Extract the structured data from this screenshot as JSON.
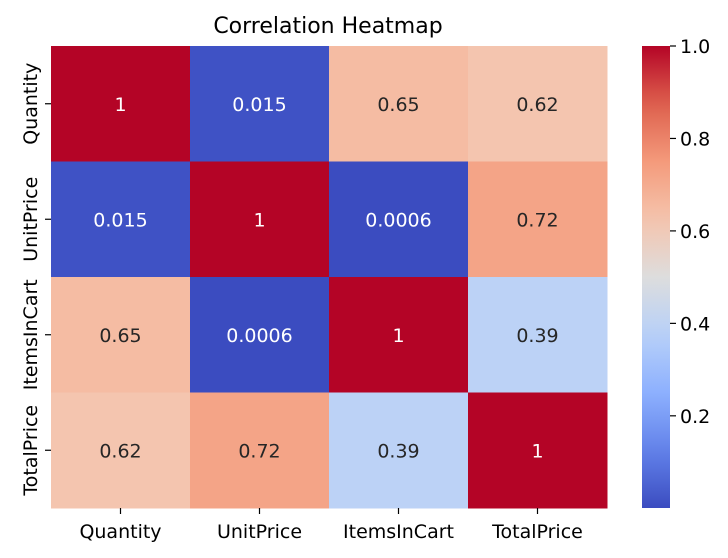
{
  "chart_data": {
    "type": "heatmap",
    "title": "Correlation Heatmap",
    "x_labels": [
      "Quantity",
      "UnitPrice",
      "ItemsInCart",
      "TotalPrice"
    ],
    "y_labels": [
      "Quantity",
      "UnitPrice",
      "ItemsInCart",
      "TotalPrice"
    ],
    "values": [
      [
        1,
        0.015,
        0.65,
        0.62
      ],
      [
        0.015,
        1,
        0.0006,
        0.72
      ],
      [
        0.65,
        0.0006,
        1,
        0.39
      ],
      [
        0.62,
        0.72,
        0.39,
        1
      ]
    ],
    "cell_labels": [
      [
        "1",
        "0.015",
        "0.65",
        "0.62"
      ],
      [
        "0.015",
        "1",
        "0.0006",
        "0.72"
      ],
      [
        "0.65",
        "0.0006",
        "1",
        "0.39"
      ],
      [
        "0.62",
        "0.72",
        "0.39",
        "1"
      ]
    ],
    "colormap": "coolwarm",
    "vmin": 0.0006,
    "vmax": 1,
    "colorbar_ticks": [
      0.2,
      0.4,
      0.6,
      0.8,
      1.0
    ],
    "colorbar_tick_labels": [
      "0.2",
      "0.4",
      "0.6",
      "0.8",
      "1.0"
    ],
    "grid": false
  }
}
